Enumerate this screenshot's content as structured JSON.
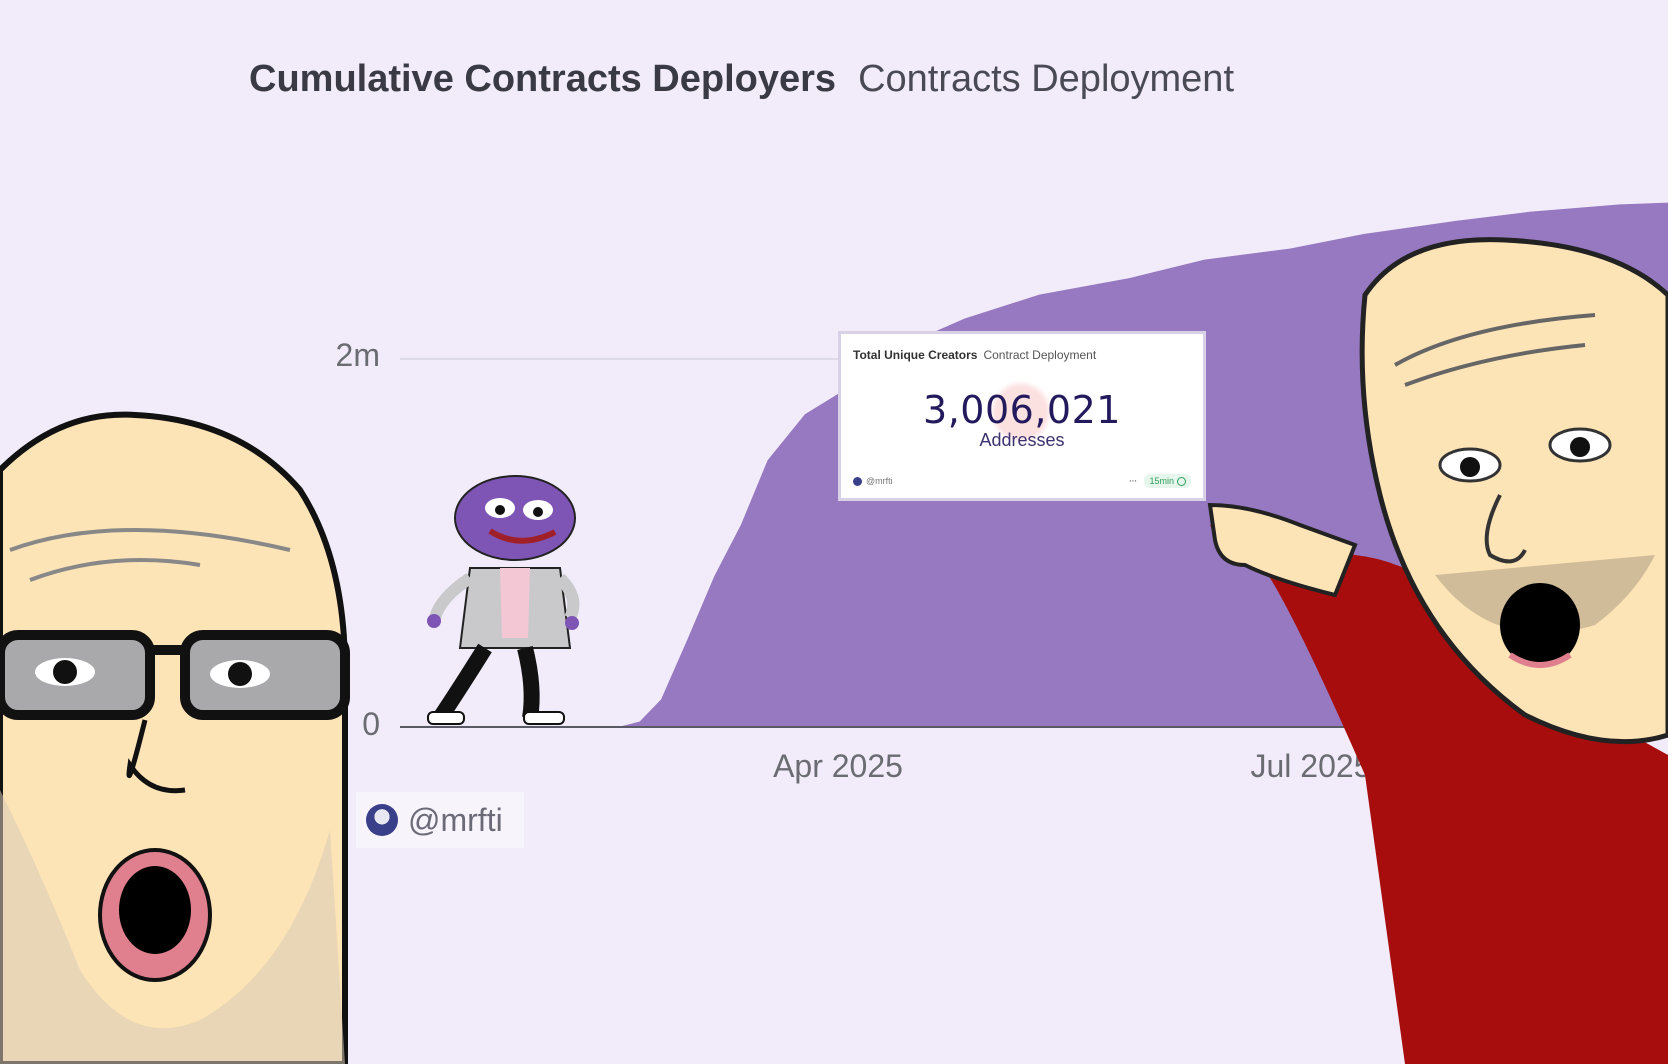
{
  "header": {
    "title": "Cumulative Contracts Deployers",
    "subtitle": "Contracts Deployment"
  },
  "author": {
    "handle": "@mrfti"
  },
  "stat_card": {
    "title": "Total Unique Creators",
    "subtitle": "Contract Deployment",
    "value": "3,006,021",
    "unit": "Addresses",
    "author": "@mrfti",
    "menu_glyph": "···",
    "refresh": "15min",
    "refresh_icon": "check-circle-icon"
  },
  "colors": {
    "background": "#f2ecfa",
    "area_fill": "#9679c0",
    "axis": "#5a5a64",
    "gridline": "#d8d3e2",
    "card_value": "#231a5e"
  },
  "chart_data": {
    "type": "area",
    "title": "Cumulative Contracts Deployers",
    "subtitle": "Contracts Deployment",
    "xlabel": "",
    "ylabel": "",
    "x_ticks": [
      {
        "label": "Apr 2025",
        "date": "2025-04-01"
      },
      {
        "label": "Jul 2025",
        "date": "2025-07-01"
      }
    ],
    "y_ticks": [
      {
        "label": "0",
        "value": 0
      },
      {
        "label": "2m",
        "value": 2000000
      }
    ],
    "xlim": [
      "2025-01-15",
      "2025-09-10"
    ],
    "ylim": [
      0,
      3000000
    ],
    "grid": true,
    "legend": "none",
    "series": [
      {
        "x": [
          "2025-01-15",
          "2025-02-01",
          "2025-02-15",
          "2025-02-25",
          "2025-03-01",
          "2025-03-05",
          "2025-03-10",
          "2025-03-15",
          "2025-03-20",
          "2025-03-25",
          "2025-04-01",
          "2025-04-10",
          "2025-04-20",
          "2025-05-01",
          "2025-05-15",
          "2025-06-01",
          "2025-06-15",
          "2025-07-01",
          "2025-07-15",
          "2025-08-01",
          "2025-08-15",
          "2025-09-01",
          "2025-09-10"
        ],
        "values": [
          0,
          0,
          0,
          0,
          30000,
          150000,
          480000,
          820000,
          1100000,
          1450000,
          1700000,
          1860000,
          2080000,
          2220000,
          2350000,
          2440000,
          2540000,
          2600000,
          2680000,
          2750000,
          2800000,
          2840000,
          2850000
        ]
      }
    ]
  },
  "cartoons": {
    "left_figure": "bald-bearded-glasses-figure",
    "center_figure": "dancing-frog-figure",
    "right_figure": "pointing-bald-figure"
  }
}
